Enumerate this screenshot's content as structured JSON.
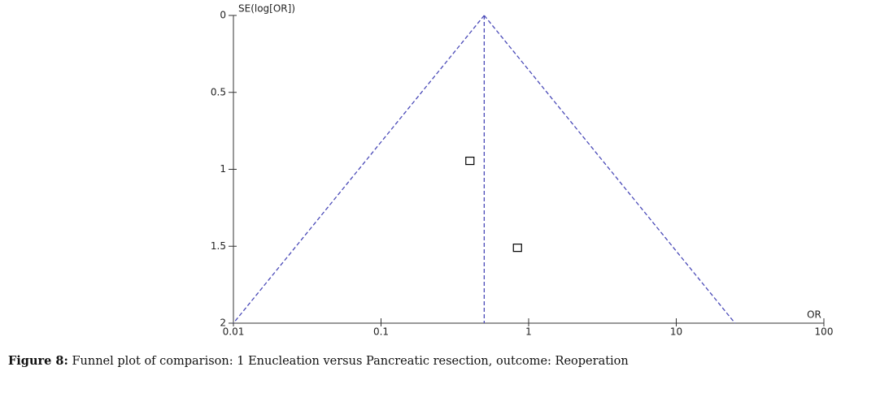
{
  "chart_data": {
    "type": "funnel",
    "y_label": "SE(log[OR])",
    "x_label": "OR",
    "x_log": true,
    "y_inverted": true,
    "xlim": [
      0.01,
      100
    ],
    "xticks": [
      0.01,
      0.1,
      1,
      10,
      100
    ],
    "ylim": [
      0,
      2
    ],
    "yticks": [
      0,
      0.5,
      1,
      1.5,
      2
    ],
    "x": [
      0.4,
      0.84
    ],
    "values": [
      0.945,
      1.51
    ],
    "marker_color": "#000000",
    "pooled_estimate": 0.5,
    "funnel_limits_at_max_se": [
      0.01,
      25
    ],
    "funnel_color": "#4a4ab8"
  },
  "caption": {
    "label": "Figure 8:",
    "text": " Funnel plot of comparison: 1 Enucleation versus Pancreatic resection, outcome: Reoperation"
  }
}
